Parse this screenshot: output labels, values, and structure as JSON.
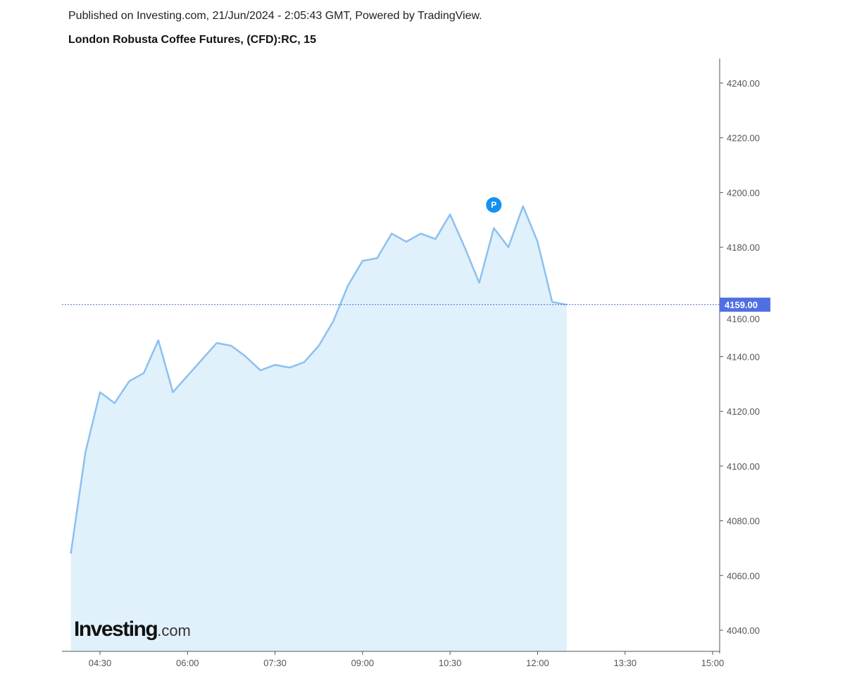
{
  "header": {
    "published": "Published on Investing.com, 21/Jun/2024 - 2:05:43 GMT, Powered by TradingView.",
    "title": "London Robusta Coffee Futures, (CFD):RC, 15"
  },
  "watermark": {
    "brand": "Investing",
    "suffix": ".com"
  },
  "marker": {
    "label": "P",
    "time": "11:15"
  },
  "chart_data": {
    "type": "area",
    "title": "London Robusta Coffee Futures, (CFD):RC, 15",
    "xlabel": "",
    "ylabel": "",
    "x": [
      "04:00",
      "04:15",
      "04:30",
      "04:45",
      "05:00",
      "05:15",
      "05:30",
      "05:45",
      "06:00",
      "06:15",
      "06:30",
      "06:45",
      "07:00",
      "07:15",
      "07:30",
      "07:45",
      "08:00",
      "08:15",
      "08:30",
      "08:45",
      "09:00",
      "09:15",
      "09:30",
      "09:45",
      "10:00",
      "10:15",
      "10:30",
      "10:45",
      "11:00",
      "11:15",
      "11:30",
      "11:45",
      "12:00",
      "12:15",
      "12:30"
    ],
    "values": [
      4068,
      4105,
      4127,
      4123,
      4131,
      4134,
      4146,
      4127,
      4133,
      4139,
      4145,
      4144,
      4140,
      4135,
      4137,
      4136,
      4138,
      4144,
      4153,
      4166,
      4175,
      4176,
      4185,
      4182,
      4185,
      4183,
      4192,
      4180,
      4167,
      4187,
      4180,
      4195,
      4182,
      4160,
      4159
    ],
    "ylim": [
      4032,
      4250
    ],
    "xlim": [
      "03:55",
      "15:05"
    ],
    "yticks": [
      "4040.00",
      "4060.00",
      "4080.00",
      "4100.00",
      "4120.00",
      "4140.00",
      "4160.00",
      "4180.00",
      "4200.00",
      "4220.00",
      "4240.00"
    ],
    "xticks": [
      "04:30",
      "06:00",
      "07:30",
      "09:00",
      "10:30",
      "12:00",
      "13:30",
      "15:00"
    ],
    "last_price": "4159.00",
    "colors": {
      "line": "#8cc0f0",
      "fill": "#e0f1fb",
      "price_label": "#4f6fe3",
      "marker": "#1391f0"
    }
  }
}
